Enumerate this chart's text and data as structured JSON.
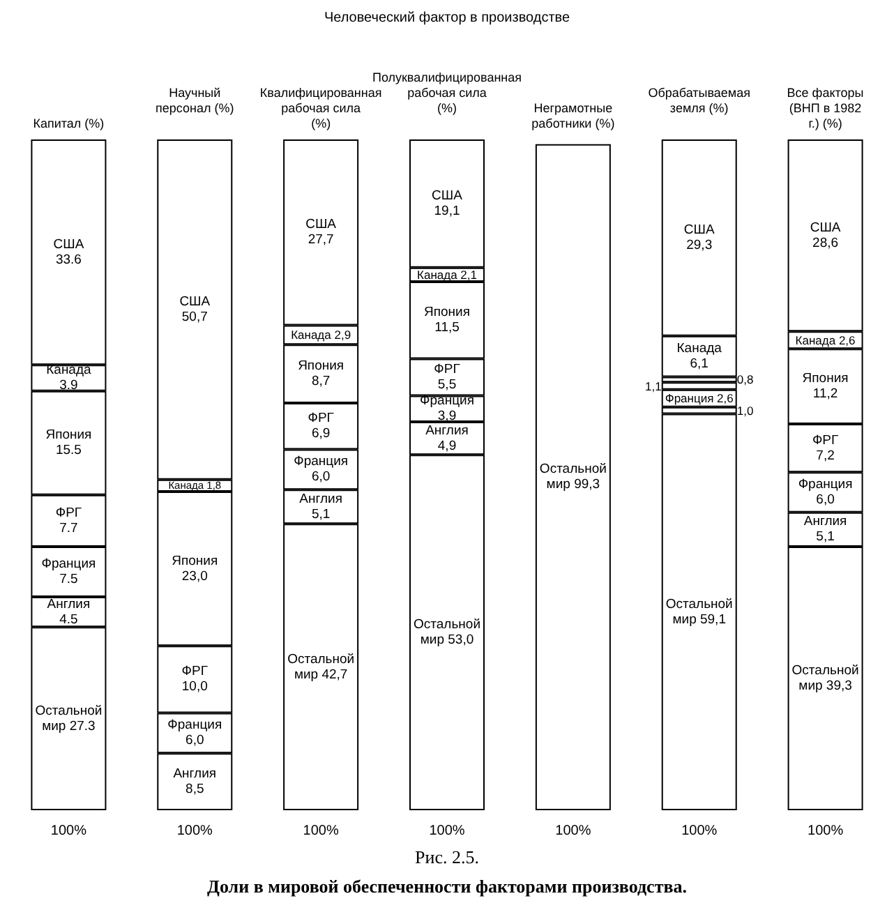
{
  "chart_data": {
    "type": "bar",
    "stacked": true,
    "title": "Рис. 2.5.",
    "subtitle": "Доли в мировой обеспеченности факторами производства.",
    "annotations": [
      "Человеческий фактор в производстве"
    ],
    "categories": [
      "Капитал (%)",
      "Научный персонал (%)",
      "Квалифицированная рабочая сила (%)",
      "Полуквалифицированная рабочая сила (%)",
      "Неграмотные работники (%)",
      "Обрабатываемая земля (%)",
      "Все факторы (ВНП в 1982 г.) (%)"
    ],
    "totals": [
      "100%",
      "100%",
      "100%",
      "100%",
      "100%",
      "100%",
      "100%"
    ],
    "series": [
      {
        "name": "Остальной мир",
        "color": "#ffffff",
        "values": [
          27.3,
          null,
          42.7,
          53.0,
          99.3,
          59.1,
          39.3
        ],
        "value_labels": [
          "27.3",
          null,
          "42,7",
          "53,0",
          "99,3",
          "59,1",
          "39,3"
        ]
      },
      {
        "name": "Англия",
        "color": "#ffffff",
        "values": [
          4.5,
          8.5,
          5.1,
          4.9,
          null,
          1.0,
          5.1
        ],
        "value_labels": [
          "4.5",
          "8,5",
          "5,1",
          "4,9",
          null,
          "1,0",
          "5,1"
        ]
      },
      {
        "name": "Франция",
        "color": "#ffffff",
        "values": [
          7.5,
          6.0,
          6.0,
          3.9,
          null,
          2.6,
          6.0
        ],
        "value_labels": [
          "7.5",
          "6,0",
          "6,0",
          "3,9",
          null,
          "2,6",
          "6,0"
        ]
      },
      {
        "name": "ФРГ",
        "color": "#ffffff",
        "values": [
          7.7,
          10.0,
          6.9,
          5.5,
          null,
          1.1,
          7.2
        ],
        "value_labels": [
          "7.7",
          "10,0",
          "6,9",
          "5,5",
          null,
          "1,1",
          "7,2"
        ]
      },
      {
        "name": "Япония",
        "color": "#ffffff",
        "values": [
          15.5,
          23.0,
          8.7,
          11.5,
          null,
          0.8,
          11.2
        ],
        "value_labels": [
          "15.5",
          "23,0",
          "8,7",
          "11,5",
          null,
          "0,8",
          "11,2"
        ]
      },
      {
        "name": "Канада",
        "color": "#ffffff",
        "values": [
          3.9,
          1.8,
          2.9,
          2.1,
          null,
          6.1,
          2.6
        ],
        "value_labels": [
          "3.9",
          "1,8",
          "2,9",
          "2,1",
          null,
          "6,1",
          "2,6"
        ]
      },
      {
        "name": "США",
        "color": "#ffffff",
        "values": [
          33.6,
          50.7,
          27.7,
          19.1,
          null,
          29.3,
          28.6
        ],
        "value_labels": [
          "33.6",
          "50,7",
          "27,7",
          "19,1",
          null,
          "29,3",
          "28,6"
        ]
      }
    ]
  }
}
